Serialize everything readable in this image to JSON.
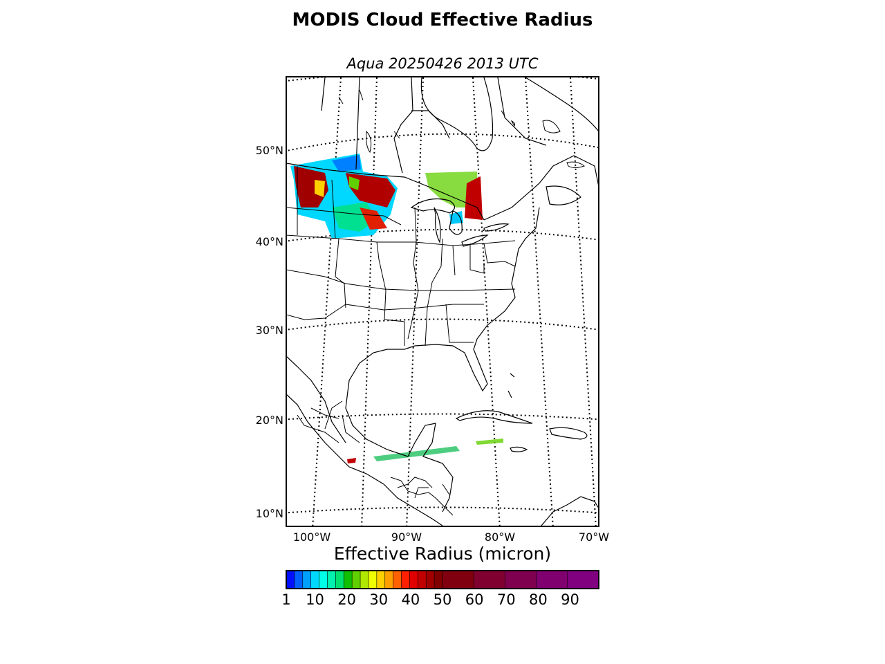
{
  "title": "MODIS Cloud Effective Radius",
  "subtitle": "Aqua 20250426 2013 UTC",
  "colorbar": {
    "title": "Effective Radius (micron)",
    "tick_labels": [
      "1",
      "10",
      "20",
      "30",
      "40",
      "50",
      "60",
      "70",
      "80",
      "90"
    ],
    "range": [
      1,
      99
    ],
    "colors": [
      "#0010ff",
      "#0060ff",
      "#00a0ff",
      "#00d8ff",
      "#00ffe8",
      "#00f0b0",
      "#00e070",
      "#10c000",
      "#60d000",
      "#b0e800",
      "#f0ff00",
      "#ffd000",
      "#ffa000",
      "#ff6000",
      "#ff2000",
      "#e00000",
      "#c00000",
      "#a00000",
      "#800000",
      "#800010",
      "#800030",
      "#800050",
      "#800070",
      "#800080"
    ]
  },
  "map": {
    "lat_labels": [
      "50°N",
      "40°N",
      "30°N",
      "20°N",
      "10°N"
    ],
    "lon_labels": [
      "100°W",
      "90°W",
      "80°W",
      "70°W"
    ]
  }
}
